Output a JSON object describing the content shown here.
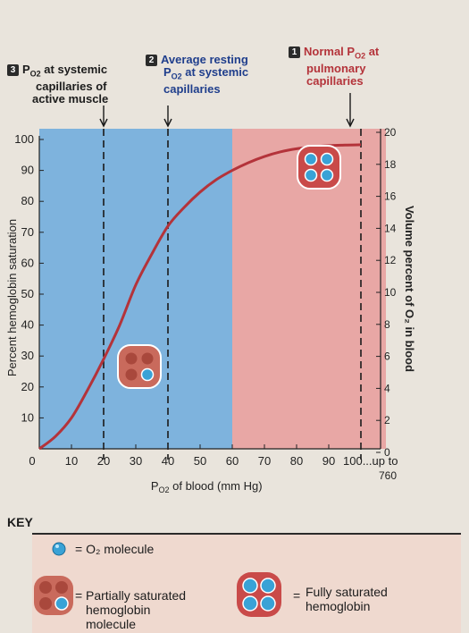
{
  "annotations": [
    {
      "num": "3",
      "lines": [
        "P<sub>O₂</sub> at systemic",
        "capillaries of",
        "active muscle"
      ]
    },
    {
      "num": "2",
      "lines": [
        "Average resting",
        "P<sub>O₂</sub> at systemic",
        "capillaries"
      ]
    },
    {
      "num": "1",
      "lines": [
        "Normal P<sub>O₂</sub> at",
        "pulmonary",
        "capillaries"
      ]
    }
  ],
  "annotation_plain": [
    {
      "num": "3",
      "line1": "P",
      "sub": "O2",
      "line1_rest": " at systemic",
      "line2": "capillaries of",
      "line3": "active muscle"
    },
    {
      "num": "2",
      "line1": "Average resting",
      "line2_p": "P",
      "sub": "O2",
      "line2_rest": " at systemic",
      "line3": "capillaries"
    },
    {
      "num": "1",
      "line1_p": "Normal P",
      "sub": "O2",
      "line1_rest": " at",
      "line2": "pulmonary",
      "line3": "capillaries"
    }
  ],
  "key": {
    "title": "KEY",
    "o2_label": "= O₂ molecule",
    "partial_eq": "=",
    "partial_label_1": "Partially saturated",
    "partial_label_2": "hemoglobin",
    "partial_label_3": "molecule",
    "full_eq": "=",
    "full_label_1": "Fully saturated",
    "full_label_2": "hemoglobin"
  },
  "colors": {
    "blue_zone": "#7eb3dd",
    "pink_zone": "#e8a7a5",
    "curve": "#b4333a",
    "hemoglobin": "#c96a5c",
    "o2": "#39a2d6",
    "badge_dark": "#2b2b2b",
    "badge_red": "#b4333a",
    "annotation_red": "#b4333a"
  },
  "chart_data": {
    "type": "line",
    "title": "",
    "xlabel": "P O2 of blood (mm Hg)",
    "ylabel": "Percent hemoglobin saturation",
    "y2label": "Volume percent of O₂ in blood",
    "xlim": [
      0,
      100
    ],
    "ylim": [
      0,
      100
    ],
    "y2lim": [
      0,
      20
    ],
    "x_ticks": [
      "0",
      "10",
      "20",
      "30",
      "40",
      "50",
      "60",
      "70",
      "80",
      "90",
      "100...up to"
    ],
    "x_tick_extra": "760",
    "y_ticks": [
      "10",
      "20",
      "30",
      "40",
      "50",
      "60",
      "70",
      "80",
      "90",
      "100"
    ],
    "y2_ticks": [
      "0",
      "2",
      "4",
      "6",
      "8",
      "10",
      "12",
      "14",
      "16",
      "18",
      "20"
    ],
    "shaded_regions": [
      {
        "x": [
          0,
          60
        ],
        "color": "blue"
      },
      {
        "x": [
          60,
          100
        ],
        "color": "pink"
      }
    ],
    "reference_lines": [
      20,
      40,
      100
    ],
    "series": [
      {
        "x": [
          0,
          5,
          10,
          15,
          20,
          25,
          30,
          35,
          40,
          45,
          50,
          55,
          60,
          65,
          70,
          75,
          80,
          85,
          90,
          95,
          100
        ],
        "values": [
          0,
          4,
          10,
          19,
          29,
          40,
          53,
          63,
          72,
          78,
          83,
          87,
          90,
          92.5,
          94.5,
          96,
          97,
          97.6,
          98,
          98.2,
          98.3
        ]
      }
    ]
  }
}
